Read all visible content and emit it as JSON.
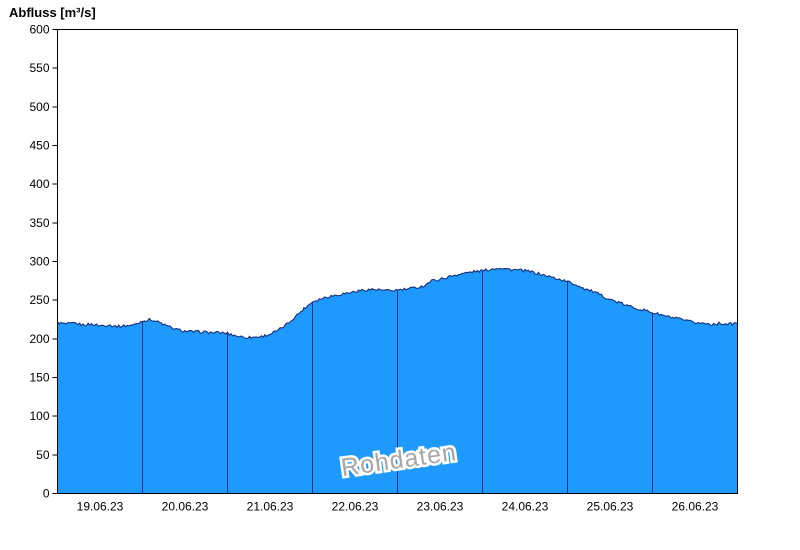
{
  "chart_data": {
    "type": "area",
    "title": "Abfluss [m³/s]",
    "ylabel": "Abfluss [m³/s]",
    "watermark": "Rohdaten",
    "ylim": [
      0,
      600
    ],
    "ytick_step": 50,
    "y_tick_labels": [
      "0",
      "50",
      "100",
      "150",
      "200",
      "250",
      "300",
      "350",
      "400",
      "450",
      "500",
      "550",
      "600"
    ],
    "xlim": [
      0,
      8
    ],
    "x_labels": [
      "19.06.23",
      "20.06.23",
      "21.06.23",
      "22.06.23",
      "23.06.23",
      "24.06.23",
      "25.06.23",
      "26.06.23"
    ],
    "grid": "day-separators-inside-area",
    "legend": "none",
    "noise": 1.8,
    "colors": {
      "fill": "#1e9aff",
      "line": "#17307e",
      "day_line": "#17307e",
      "axis": "#000000",
      "watermark": "#a8a8a8"
    },
    "series": [
      {
        "name": "Abfluss",
        "x_unit": "days since 19.06.23 00:00",
        "points": [
          [
            0.0,
            221
          ],
          [
            0.1,
            219
          ],
          [
            0.2,
            220
          ],
          [
            0.3,
            218
          ],
          [
            0.4,
            219
          ],
          [
            0.5,
            217
          ],
          [
            0.6,
            218
          ],
          [
            0.7,
            216
          ],
          [
            0.8,
            217
          ],
          [
            0.9,
            218
          ],
          [
            1.0,
            223
          ],
          [
            1.1,
            225
          ],
          [
            1.2,
            221
          ],
          [
            1.3,
            216
          ],
          [
            1.4,
            212
          ],
          [
            1.5,
            210
          ],
          [
            1.6,
            209
          ],
          [
            1.7,
            209
          ],
          [
            1.8,
            208
          ],
          [
            1.9,
            208
          ],
          [
            2.0,
            207
          ],
          [
            2.1,
            204
          ],
          [
            2.2,
            202
          ],
          [
            2.3,
            202
          ],
          [
            2.4,
            203
          ],
          [
            2.5,
            206
          ],
          [
            2.6,
            211
          ],
          [
            2.7,
            219
          ],
          [
            2.8,
            229
          ],
          [
            2.9,
            239
          ],
          [
            3.0,
            248
          ],
          [
            3.1,
            252
          ],
          [
            3.2,
            255
          ],
          [
            3.3,
            257
          ],
          [
            3.4,
            259
          ],
          [
            3.5,
            261
          ],
          [
            3.6,
            263
          ],
          [
            3.7,
            264
          ],
          [
            3.8,
            263
          ],
          [
            3.9,
            262
          ],
          [
            4.0,
            263
          ],
          [
            4.1,
            264
          ],
          [
            4.2,
            266
          ],
          [
            4.3,
            268
          ],
          [
            4.4,
            275
          ],
          [
            4.5,
            277
          ],
          [
            4.6,
            280
          ],
          [
            4.7,
            283
          ],
          [
            4.8,
            285
          ],
          [
            4.9,
            287
          ],
          [
            5.0,
            288
          ],
          [
            5.1,
            290
          ],
          [
            5.2,
            292
          ],
          [
            5.3,
            290
          ],
          [
            5.4,
            289
          ],
          [
            5.5,
            288
          ],
          [
            5.6,
            286
          ],
          [
            5.7,
            283
          ],
          [
            5.8,
            280
          ],
          [
            5.9,
            277
          ],
          [
            6.0,
            274
          ],
          [
            6.1,
            270
          ],
          [
            6.2,
            265
          ],
          [
            6.3,
            261
          ],
          [
            6.4,
            256
          ],
          [
            6.5,
            251
          ],
          [
            6.6,
            247
          ],
          [
            6.7,
            243
          ],
          [
            6.8,
            240
          ],
          [
            6.9,
            237
          ],
          [
            7.0,
            234
          ],
          [
            7.1,
            231
          ],
          [
            7.2,
            228
          ],
          [
            7.3,
            226
          ],
          [
            7.4,
            223
          ],
          [
            7.5,
            221
          ],
          [
            7.6,
            220
          ],
          [
            7.7,
            219
          ],
          [
            7.8,
            220
          ],
          [
            7.9,
            219
          ],
          [
            8.0,
            220
          ]
        ]
      }
    ]
  }
}
